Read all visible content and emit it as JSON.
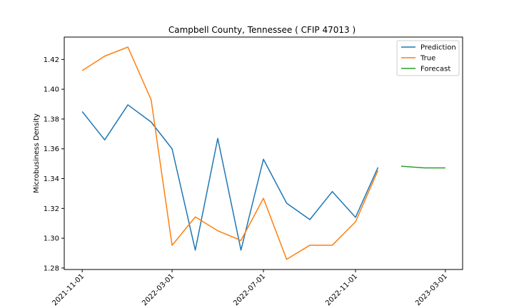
{
  "chart_data": {
    "type": "line",
    "title": "Campbell County, Tennessee ( CFIP 47013 )",
    "xlabel": "",
    "ylabel": "Microbusiness Density",
    "ylim": [
      1.279,
      1.435
    ],
    "yticks": [
      1.28,
      1.3,
      1.32,
      1.34,
      1.36,
      1.38,
      1.4,
      1.42
    ],
    "ytick_labels": [
      "1.28",
      "1.30",
      "1.32",
      "1.34",
      "1.36",
      "1.38",
      "1.40",
      "1.42"
    ],
    "xlim": [
      "2021-10-08",
      "2023-03-24"
    ],
    "xticks": [
      "2021-11-01",
      "2022-03-01",
      "2022-07-01",
      "2022-11-01",
      "2023-03-01"
    ],
    "grid": false,
    "legend": "top-right",
    "series": [
      {
        "name": "Prediction",
        "color": "#1f77b4",
        "x": [
          "2021-11-01",
          "2021-12-01",
          "2022-01-01",
          "2022-02-01",
          "2022-03-01",
          "2022-04-01",
          "2022-05-01",
          "2022-06-01",
          "2022-07-01",
          "2022-08-01",
          "2022-09-01",
          "2022-10-01",
          "2022-11-01",
          "2022-12-01"
        ],
        "values": [
          1.385,
          1.366,
          1.3895,
          1.378,
          1.36,
          1.292,
          1.367,
          1.292,
          1.353,
          1.3235,
          1.3125,
          1.3313,
          1.314,
          1.3475
        ]
      },
      {
        "name": "True",
        "color": "#ff7f0e",
        "x": [
          "2021-11-01",
          "2021-12-01",
          "2022-01-01",
          "2022-02-01",
          "2022-03-01",
          "2022-04-01",
          "2022-05-01",
          "2022-06-01",
          "2022-07-01",
          "2022-08-01",
          "2022-09-01",
          "2022-10-01",
          "2022-11-01",
          "2022-12-01"
        ],
        "values": [
          1.4125,
          1.4222,
          1.4283,
          1.393,
          1.2952,
          1.3143,
          1.305,
          1.2985,
          1.3268,
          1.2858,
          1.2953,
          1.2953,
          1.311,
          1.3455
        ]
      },
      {
        "name": "Forecast",
        "color": "#2ca02c",
        "x": [
          "2023-01-01",
          "2023-02-01",
          "2023-03-01"
        ],
        "values": [
          1.3483,
          1.3472,
          1.3472
        ]
      }
    ]
  }
}
